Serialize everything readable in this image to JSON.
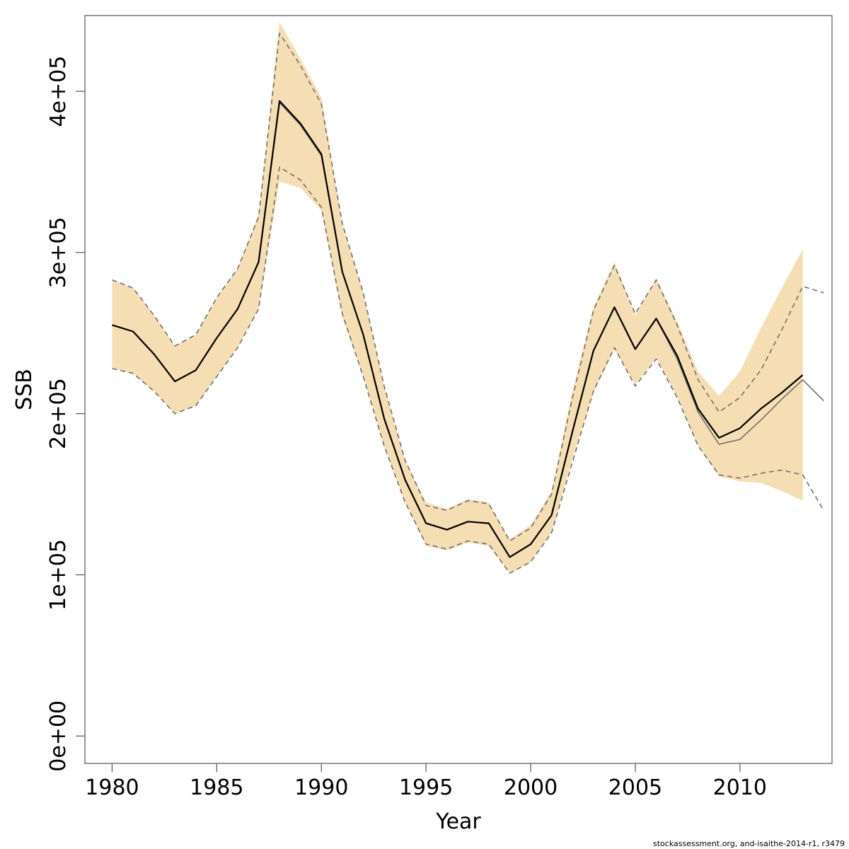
{
  "chart_data": {
    "type": "line",
    "xlabel": "Year",
    "ylabel": "SSB",
    "xlim": [
      1978.7,
      2014.4
    ],
    "ylim": [
      -17000,
      447000
    ],
    "x_ticks": [
      1980,
      1985,
      1990,
      1995,
      2000,
      2005,
      2010
    ],
    "x_tick_labels": [
      "1980",
      "1985",
      "1990",
      "1995",
      "2000",
      "2005",
      "2010"
    ],
    "y_ticks": [
      0,
      100000,
      200000,
      300000,
      400000
    ],
    "y_tick_labels": [
      "0e+00",
      "1e+05",
      "2e+05",
      "3e+05",
      "4e+05"
    ],
    "grid": false,
    "colors": {
      "band": "#F5DEB3",
      "estimate": "#000000",
      "secondary": "#707070",
      "frame": "#555555"
    },
    "band": {
      "x": [
        1980,
        1981,
        1982,
        1983,
        1984,
        1985,
        1986,
        1987,
        1988,
        1989,
        1990,
        1991,
        1992,
        1993,
        1994,
        1995,
        1996,
        1997,
        1998,
        1999,
        2000,
        2001,
        2002,
        2003,
        2004,
        2005,
        2006,
        2007,
        2008,
        2009,
        2010,
        2011,
        2012,
        2013
      ],
      "lower": [
        228000,
        225000,
        214000,
        200000,
        205000,
        223000,
        241000,
        265000,
        344000,
        340000,
        326000,
        260000,
        223000,
        180000,
        145000,
        118000,
        115000,
        120000,
        118000,
        101000,
        108000,
        126000,
        172000,
        213000,
        240000,
        218000,
        235000,
        210000,
        180000,
        161000,
        158000,
        157000,
        152000,
        146000
      ],
      "upper": [
        283000,
        278000,
        261000,
        242000,
        249000,
        272000,
        290000,
        324000,
        443000,
        420000,
        396000,
        318000,
        275000,
        217000,
        171000,
        145000,
        141000,
        147000,
        145000,
        122000,
        131000,
        152000,
        214000,
        266000,
        294000,
        261000,
        284000,
        257000,
        226000,
        211000,
        226000,
        253000,
        278000,
        302000
      ]
    },
    "series": [
      {
        "style": "solid-black",
        "x": [
          1980,
          1981,
          1982,
          1983,
          1984,
          1985,
          1986,
          1987,
          1988,
          1989,
          1990,
          1991,
          1992,
          1993,
          1994,
          1995,
          1996,
          1997,
          1998,
          1999,
          2000,
          2001,
          2002,
          2003,
          2004,
          2005,
          2006,
          2007,
          2008,
          2009,
          2010,
          2011,
          2012,
          2013
        ],
        "values": [
          255000,
          251000,
          237000,
          220000,
          227000,
          247000,
          265000,
          294000,
          394000,
          380000,
          361000,
          288000,
          249000,
          197000,
          159000,
          132000,
          128000,
          133000,
          132000,
          111000,
          119000,
          137000,
          189000,
          239000,
          266000,
          240000,
          259000,
          236000,
          203000,
          185000,
          191000,
          203000,
          213000,
          224000
        ]
      },
      {
        "style": "solid-grey",
        "x": [
          1980,
          1981,
          1982,
          1983,
          1984,
          1985,
          1986,
          1987,
          1988,
          1989,
          1990,
          1991,
          1992,
          1993,
          1994,
          1995,
          1996,
          1997,
          1998,
          1999,
          2000,
          2001,
          2002,
          2003,
          2004,
          2005,
          2006,
          2007,
          2008,
          2009,
          2010,
          2011,
          2012,
          2013,
          2014
        ],
        "values": [
          255000,
          251000,
          237000,
          220000,
          227000,
          247000,
          265000,
          294000,
          393000,
          379000,
          360000,
          288000,
          249000,
          197000,
          159000,
          132000,
          128000,
          133000,
          132000,
          111000,
          119000,
          137000,
          189000,
          239000,
          266000,
          240000,
          259000,
          234000,
          201000,
          181000,
          184000,
          196000,
          209000,
          221000,
          208000
        ]
      },
      {
        "style": "dashed-upper",
        "x": [
          1980,
          1981,
          1982,
          1983,
          1984,
          1985,
          1986,
          1987,
          1988,
          1989,
          1990,
          1991,
          1992,
          1993,
          1994,
          1995,
          1996,
          1997,
          1998,
          1999,
          2000,
          2001,
          2002,
          2003,
          2004,
          2005,
          2006,
          2007,
          2008,
          2009,
          2010,
          2011,
          2012,
          2013,
          2014
        ],
        "values": [
          283000,
          278000,
          261000,
          242000,
          249000,
          272000,
          290000,
          322000,
          436000,
          416000,
          392000,
          318000,
          275000,
          217000,
          171000,
          143000,
          140000,
          146000,
          144000,
          121000,
          129000,
          150000,
          210000,
          264000,
          292000,
          262000,
          283000,
          255000,
          221000,
          201000,
          210000,
          227000,
          252000,
          279000,
          275000
        ]
      },
      {
        "style": "dashed-lower",
        "x": [
          1980,
          1981,
          1982,
          1983,
          1984,
          1985,
          1986,
          1987,
          1988,
          1989,
          1990,
          1991,
          1992,
          1993,
          1994,
          1995,
          1996,
          1997,
          1998,
          1999,
          2000,
          2001,
          2002,
          2003,
          2004,
          2005,
          2006,
          2007,
          2008,
          2009,
          2010,
          2011,
          2012,
          2013,
          2014
        ],
        "values": [
          228000,
          225000,
          214000,
          200000,
          205000,
          223000,
          241000,
          265000,
          353000,
          345000,
          328000,
          262000,
          223000,
          180000,
          145000,
          119000,
          116000,
          121000,
          119000,
          101000,
          108000,
          126000,
          170000,
          214000,
          241000,
          217000,
          234000,
          210000,
          180000,
          162000,
          160000,
          163000,
          165000,
          162000,
          140000
        ]
      }
    ]
  },
  "footer": {
    "source_note": "stockassessment.org, and-isaithe-2014-r1, r3479"
  }
}
